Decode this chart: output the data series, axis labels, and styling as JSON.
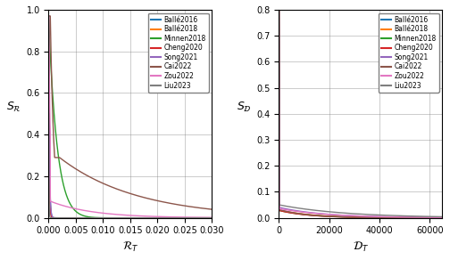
{
  "models": [
    "Ballé2016",
    "Ballé2018",
    "Minnen2018",
    "Cheng2020",
    "Song2021",
    "Cai2022",
    "Zou2022",
    "Liu2023"
  ],
  "colors": [
    "#1f77b4",
    "#ff7f0e",
    "#2ca02c",
    "#d62728",
    "#9467bd",
    "#8c564b",
    "#e377c2",
    "#7f7f7f"
  ],
  "left_xlabel": "$\\mathcal{R}_T$",
  "left_ylabel": "$S_\\mathcal{R}$",
  "right_xlabel": "$\\mathcal{D}_T$",
  "right_ylabel": "$S_\\mathcal{D}$",
  "left_xlim": [
    0.0,
    0.03
  ],
  "left_ylim": [
    0.0,
    1.0
  ],
  "right_xlim": [
    0.0,
    65000
  ],
  "right_ylim": [
    0.0,
    0.8
  ],
  "left_xticks": [
    0.0,
    0.005,
    0.01,
    0.015,
    0.02,
    0.025,
    0.03
  ],
  "right_xticks": [
    0,
    20000,
    40000,
    60000
  ]
}
